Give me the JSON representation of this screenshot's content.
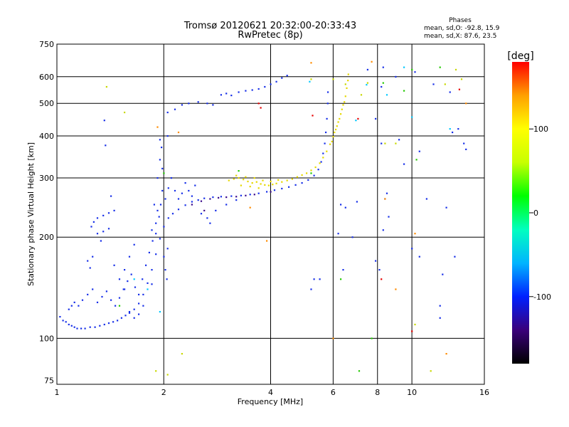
{
  "chart_data": {
    "type": "scatter",
    "title": "Tromsø 20120621 20:32:00-20:33:43",
    "subtitle": "RwPretec (8p)",
    "xlabel": "Frequency [MHz]",
    "ylabel": "Stationary phase Virtual Height [km]",
    "x_scale": "log",
    "y_scale": "log",
    "xlim": [
      1,
      16
    ],
    "ylim": [
      73,
      750
    ],
    "x_ticks": [
      1,
      2,
      4,
      6,
      8,
      10,
      16
    ],
    "y_ticks": [
      75,
      100,
      200,
      300,
      400,
      500,
      600,
      750
    ],
    "grid": true,
    "stats": {
      "heading": "Phases",
      "line_o": "mean, sd,O: -92.8, 15.9",
      "line_x": "mean, sd,X:  87.6, 23.5"
    },
    "colorbar": {
      "label": "[deg]",
      "ticks": [
        100,
        0,
        -100
      ],
      "range": [
        -180,
        180
      ],
      "colors": [
        "#000000",
        "#3a007a",
        "#0020ff",
        "#00b4ff",
        "#00ffc0",
        "#00ff00",
        "#c8ff00",
        "#ffff00",
        "#ffa000",
        "#ff0000"
      ]
    },
    "series": [
      {
        "color": "#1830e8",
        "points": [
          [
            1.02,
            116
          ],
          [
            1.04,
            113
          ],
          [
            1.06,
            112
          ],
          [
            1.08,
            110
          ],
          [
            1.1,
            109
          ],
          [
            1.12,
            108
          ],
          [
            1.14,
            107
          ],
          [
            1.17,
            107
          ],
          [
            1.2,
            107
          ],
          [
            1.24,
            108
          ],
          [
            1.28,
            108
          ],
          [
            1.32,
            109
          ],
          [
            1.36,
            110
          ],
          [
            1.4,
            111
          ],
          [
            1.44,
            112
          ],
          [
            1.48,
            113
          ],
          [
            1.52,
            115
          ],
          [
            1.56,
            117
          ],
          [
            1.6,
            119
          ],
          [
            1.65,
            122
          ],
          [
            1.7,
            127
          ],
          [
            1.75,
            135
          ],
          [
            1.8,
            146
          ],
          [
            1.85,
            160
          ],
          [
            1.9,
            178
          ],
          [
            1.95,
            198
          ],
          [
            2.0,
            215
          ],
          [
            2.06,
            228
          ],
          [
            2.12,
            235
          ],
          [
            2.2,
            242
          ],
          [
            2.3,
            249
          ],
          [
            2.4,
            255
          ],
          [
            2.5,
            258
          ],
          [
            2.6,
            261
          ],
          [
            2.75,
            263
          ],
          [
            2.9,
            264
          ],
          [
            3.1,
            265
          ],
          [
            3.3,
            266
          ],
          [
            3.5,
            268
          ],
          [
            3.7,
            270
          ],
          [
            3.9,
            273
          ],
          [
            4.1,
            276
          ],
          [
            4.3,
            279
          ],
          [
            4.5,
            282
          ],
          [
            4.7,
            286
          ],
          [
            4.9,
            290
          ],
          [
            5.1,
            296
          ],
          [
            5.3,
            305
          ],
          [
            5.45,
            318
          ],
          [
            5.55,
            335
          ],
          [
            5.62,
            355
          ],
          [
            5.68,
            380
          ],
          [
            5.72,
            410
          ],
          [
            5.76,
            450
          ],
          [
            5.79,
            500
          ],
          [
            5.8,
            540
          ],
          [
            2.05,
            470
          ],
          [
            2.15,
            480
          ],
          [
            2.25,
            495
          ],
          [
            2.35,
            500
          ],
          [
            2.5,
            505
          ],
          [
            2.65,
            500
          ],
          [
            2.75,
            495
          ],
          [
            2.9,
            530
          ],
          [
            3.0,
            535
          ],
          [
            3.1,
            528
          ],
          [
            3.25,
            540
          ],
          [
            3.4,
            545
          ],
          [
            3.55,
            548
          ],
          [
            3.7,
            552
          ],
          [
            3.85,
            560
          ],
          [
            4.0,
            570
          ],
          [
            4.15,
            580
          ],
          [
            4.3,
            595
          ],
          [
            4.45,
            605
          ],
          [
            1.3,
            228
          ],
          [
            1.35,
            232
          ],
          [
            1.4,
            236
          ],
          [
            1.45,
            240
          ],
          [
            1.3,
            205
          ],
          [
            1.35,
            208
          ],
          [
            1.4,
            212
          ],
          [
            1.25,
            215
          ],
          [
            1.27,
            222
          ],
          [
            1.08,
            122
          ],
          [
            1.1,
            125
          ],
          [
            1.12,
            128
          ],
          [
            1.15,
            125
          ],
          [
            1.18,
            130
          ],
          [
            1.22,
            135
          ],
          [
            1.26,
            140
          ],
          [
            1.3,
            128
          ],
          [
            1.34,
            133
          ],
          [
            1.38,
            138
          ],
          [
            1.42,
            130
          ],
          [
            1.46,
            125
          ],
          [
            1.5,
            132
          ],
          [
            1.54,
            140
          ],
          [
            1.58,
            148
          ],
          [
            1.62,
            155
          ],
          [
            1.66,
            142
          ],
          [
            1.7,
            135
          ],
          [
            1.74,
            150
          ],
          [
            1.78,
            165
          ],
          [
            1.82,
            180
          ],
          [
            1.86,
            195
          ],
          [
            1.9,
            205
          ],
          [
            1.94,
            230
          ],
          [
            1.96,
            250
          ],
          [
            1.98,
            275
          ],
          [
            1.88,
            250
          ],
          [
            1.92,
            300
          ],
          [
            1.95,
            340
          ],
          [
            1.97,
            370
          ],
          [
            2.02,
            260
          ],
          [
            2.06,
            280
          ],
          [
            2.1,
            300
          ],
          [
            2.15,
            275
          ],
          [
            2.2,
            260
          ],
          [
            2.25,
            270
          ],
          [
            2.3,
            290
          ],
          [
            2.35,
            275
          ],
          [
            2.4,
            265
          ],
          [
            2.45,
            285
          ],
          [
            1.22,
            170
          ],
          [
            1.26,
            175
          ],
          [
            1.24,
            162
          ],
          [
            1.6,
            175
          ],
          [
            1.65,
            190
          ],
          [
            1.55,
            160
          ],
          [
            1.85,
            210
          ],
          [
            1.9,
            220
          ],
          [
            1.92,
            240
          ],
          [
            2.0,
            175
          ],
          [
            2.02,
            160
          ],
          [
            2.04,
            150
          ],
          [
            2.05,
            185
          ],
          [
            1.85,
            145
          ],
          [
            1.75,
            125
          ],
          [
            1.7,
            118
          ],
          [
            1.65,
            115
          ],
          [
            1.6,
            120
          ],
          [
            1.36,
            445
          ],
          [
            1.37,
            375
          ],
          [
            1.42,
            265
          ],
          [
            1.33,
            195
          ],
          [
            1.55,
            140
          ],
          [
            1.45,
            165
          ],
          [
            1.5,
            150
          ],
          [
            1.95,
            390
          ],
          [
            2.05,
            400
          ],
          [
            1.98,
            320
          ],
          [
            2.55,
            235
          ],
          [
            2.65,
            228
          ],
          [
            2.8,
            240
          ],
          [
            3.0,
            250
          ],
          [
            3.2,
            258
          ],
          [
            2.7,
            220
          ],
          [
            5.2,
            140
          ],
          [
            5.3,
            150
          ],
          [
            5.5,
            150
          ],
          [
            6.2,
            205
          ],
          [
            6.4,
            160
          ],
          [
            6.8,
            200
          ],
          [
            7.9,
            450
          ],
          [
            8.2,
            380
          ],
          [
            8.5,
            270
          ],
          [
            8.6,
            230
          ],
          [
            9.2,
            390
          ],
          [
            9.5,
            330
          ],
          [
            10,
            185
          ],
          [
            10.5,
            360
          ],
          [
            11,
            260
          ],
          [
            12,
            125
          ],
          [
            12,
            115
          ],
          [
            12.5,
            245
          ],
          [
            13,
            410
          ],
          [
            14,
            380
          ],
          [
            7.5,
            630
          ],
          [
            8.2,
            560
          ],
          [
            8.3,
            640
          ],
          [
            9.0,
            600
          ],
          [
            10.2,
            620
          ],
          [
            11.5,
            570
          ],
          [
            12.8,
            540
          ],
          [
            13.5,
            420
          ],
          [
            14.2,
            365
          ],
          [
            7.9,
            170
          ],
          [
            8.1,
            160
          ],
          [
            8.3,
            210
          ],
          [
            8.4,
            260
          ],
          [
            6.3,
            250
          ],
          [
            6.5,
            245
          ],
          [
            7.0,
            255
          ],
          [
            10.5,
            175
          ],
          [
            12.2,
            155
          ],
          [
            13.2,
            175
          ]
        ]
      },
      {
        "color": "#e6d800",
        "points": [
          [
            3.05,
            295
          ],
          [
            3.15,
            298
          ],
          [
            3.25,
            300
          ],
          [
            3.35,
            297
          ],
          [
            3.45,
            293
          ],
          [
            3.55,
            290
          ],
          [
            3.65,
            292
          ],
          [
            3.75,
            288
          ],
          [
            3.85,
            286
          ],
          [
            3.95,
            285
          ],
          [
            4.05,
            287
          ],
          [
            4.15,
            289
          ],
          [
            4.3,
            292
          ],
          [
            4.45,
            295
          ],
          [
            4.6,
            298
          ],
          [
            4.75,
            302
          ],
          [
            4.9,
            306
          ],
          [
            5.05,
            310
          ],
          [
            5.2,
            316
          ],
          [
            5.35,
            323
          ],
          [
            5.5,
            332
          ],
          [
            5.62,
            345
          ],
          [
            5.75,
            360
          ],
          [
            5.88,
            378
          ],
          [
            6.0,
            398
          ],
          [
            6.1,
            418
          ],
          [
            6.2,
            440
          ],
          [
            6.3,
            465
          ],
          [
            6.4,
            495
          ],
          [
            6.5,
            525
          ],
          [
            6.55,
            555
          ],
          [
            6.6,
            585
          ],
          [
            6.62,
            610
          ],
          [
            3.2,
            305
          ],
          [
            3.4,
            302
          ],
          [
            3.6,
            300
          ],
          [
            3.8,
            295
          ],
          [
            4.0,
            293
          ],
          [
            4.2,
            296
          ],
          [
            3.3,
            285
          ],
          [
            3.5,
            283
          ],
          [
            3.7,
            280
          ],
          [
            6.05,
            410
          ],
          [
            6.15,
            428
          ],
          [
            6.25,
            450
          ],
          [
            6.35,
            480
          ],
          [
            6.45,
            505
          ],
          [
            5.95,
            385
          ]
        ]
      },
      {
        "color": "#3a0a8a",
        "points": [
          [
            2.4,
            250
          ],
          [
            2.55,
            256
          ],
          [
            2.7,
            260
          ],
          [
            2.85,
            262
          ],
          [
            3.0,
            263
          ],
          [
            3.2,
            264
          ],
          [
            3.4,
            266
          ],
          [
            3.6,
            268
          ],
          [
            4.0,
            273
          ],
          [
            2.6,
            240
          ]
        ]
      },
      {
        "color": "#00c8ff",
        "points": [
          [
            1.65,
            150
          ],
          [
            1.8,
            140
          ],
          [
            1.95,
            120
          ],
          [
            5.15,
            580
          ],
          [
            6.95,
            445
          ],
          [
            7.45,
            568
          ],
          [
            8.5,
            530
          ],
          [
            9.5,
            640
          ],
          [
            10.0,
            455
          ],
          [
            12.8,
            420
          ]
        ]
      },
      {
        "color": "#22c800",
        "points": [
          [
            1.5,
            125
          ],
          [
            2.0,
            310
          ],
          [
            3.25,
            315
          ],
          [
            5.2,
            310
          ],
          [
            6.3,
            150
          ],
          [
            7.1,
            80
          ],
          [
            7.7,
            100
          ],
          [
            8.3,
            575
          ],
          [
            9.5,
            545
          ],
          [
            10.0,
            630
          ],
          [
            10.3,
            340
          ],
          [
            12.0,
            640
          ]
        ]
      },
      {
        "color": "#ff8c00",
        "points": [
          [
            1.92,
            425
          ],
          [
            2.2,
            410
          ],
          [
            3.5,
            245
          ],
          [
            3.9,
            195
          ],
          [
            5.2,
            660
          ],
          [
            6.0,
            100
          ],
          [
            7.7,
            665
          ],
          [
            8.4,
            260
          ],
          [
            9.0,
            140
          ],
          [
            10.2,
            205
          ],
          [
            12.5,
            90
          ],
          [
            14.2,
            500
          ]
        ]
      },
      {
        "color": "#e60000",
        "points": [
          [
            3.7,
            500
          ],
          [
            3.75,
            485
          ],
          [
            5.25,
            460
          ],
          [
            7.05,
            450
          ],
          [
            8.2,
            150
          ],
          [
            10.0,
            105
          ],
          [
            13.6,
            550
          ]
        ]
      },
      {
        "color": "#c8d800",
        "points": [
          [
            1.38,
            560
          ],
          [
            1.55,
            470
          ],
          [
            1.9,
            80
          ],
          [
            2.05,
            78
          ],
          [
            2.25,
            90
          ],
          [
            5.2,
            590
          ],
          [
            6.0,
            590
          ],
          [
            6.5,
            570
          ],
          [
            7.2,
            530
          ],
          [
            7.5,
            575
          ],
          [
            8.4,
            380
          ],
          [
            9.0,
            380
          ],
          [
            10.2,
            110
          ],
          [
            12.4,
            570
          ],
          [
            13.3,
            630
          ],
          [
            13.8,
            590
          ],
          [
            11.3,
            80
          ]
        ]
      }
    ]
  }
}
